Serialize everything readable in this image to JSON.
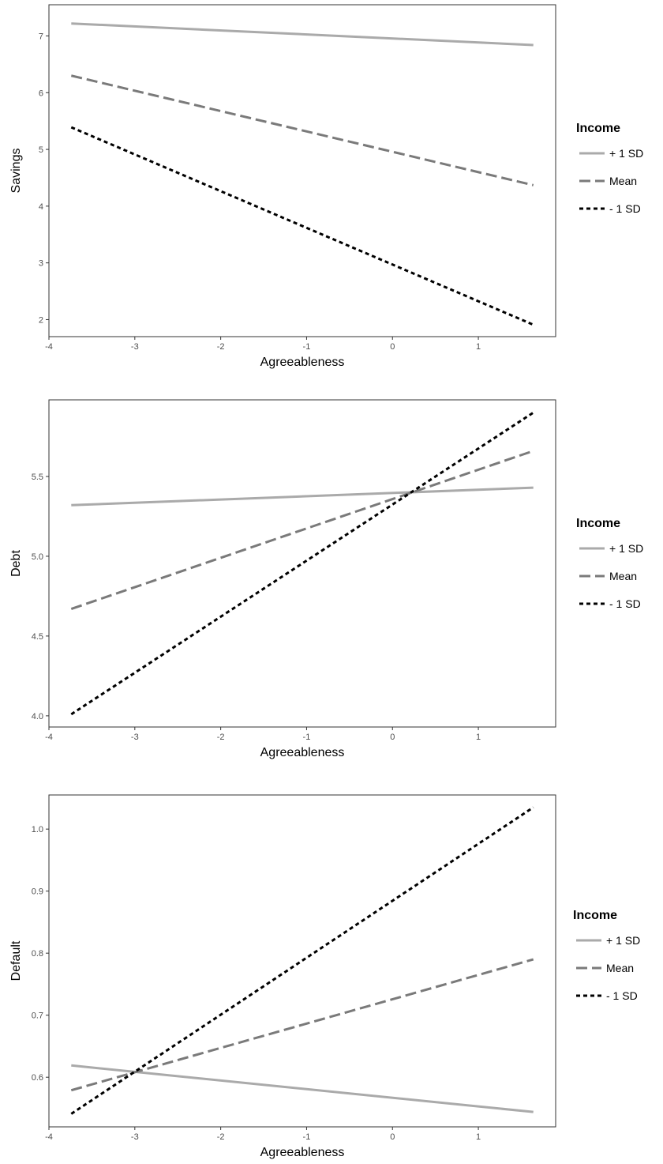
{
  "styles": {
    "plus_1_sd": {
      "color": "#aaaaaa",
      "dash": ""
    },
    "mean": {
      "color": "#7a7a7a",
      "dash": "14,6"
    },
    "minus_1_sd": {
      "color": "#000000",
      "dash": "5,4"
    }
  },
  "chart_data": [
    {
      "type": "line",
      "xlabel": "Agreeableness",
      "ylabel": "Savings",
      "xlim": [
        -4,
        1.9
      ],
      "ylim": [
        1.7,
        7.55
      ],
      "xticks": [
        -4,
        -3,
        -2,
        -1,
        0,
        1
      ],
      "yticks": [
        2,
        3,
        4,
        5,
        6,
        7
      ],
      "ytick_labels": [
        "2",
        "3",
        "4",
        "5",
        "6",
        "7"
      ],
      "legend": {
        "title": "Income",
        "placement": "right"
      },
      "series": [
        {
          "key": "plus_1_sd",
          "name": "+ 1 SD",
          "x": [
            -3.74,
            1.64
          ],
          "y": [
            7.22,
            6.84
          ]
        },
        {
          "key": "mean",
          "name": "Mean",
          "x": [
            -3.74,
            1.64
          ],
          "y": [
            6.3,
            4.37
          ]
        },
        {
          "key": "minus_1_sd",
          "name": "- 1 SD",
          "x": [
            -3.74,
            1.64
          ],
          "y": [
            5.39,
            1.91
          ]
        }
      ]
    },
    {
      "type": "line",
      "xlabel": "Agreeableness",
      "ylabel": "Debt",
      "xlim": [
        -4,
        1.9
      ],
      "ylim": [
        3.93,
        5.98
      ],
      "xticks": [
        -4,
        -3,
        -2,
        -1,
        0,
        1
      ],
      "yticks": [
        4.0,
        4.5,
        5.0,
        5.5
      ],
      "ytick_labels": [
        "4.0",
        "4.5",
        "5.0",
        "5.5"
      ],
      "legend": {
        "title": "Income",
        "placement": "right"
      },
      "series": [
        {
          "key": "plus_1_sd",
          "name": "+ 1 SD",
          "x": [
            -3.74,
            1.64
          ],
          "y": [
            5.32,
            5.43
          ]
        },
        {
          "key": "mean",
          "name": "Mean",
          "x": [
            -3.74,
            1.64
          ],
          "y": [
            4.67,
            5.66
          ]
        },
        {
          "key": "minus_1_sd",
          "name": "- 1 SD",
          "x": [
            -3.74,
            1.64
          ],
          "y": [
            4.01,
            5.9
          ]
        }
      ]
    },
    {
      "type": "line",
      "xlabel": "Agreeableness",
      "ylabel": "Default",
      "xlim": [
        -4,
        1.9
      ],
      "ylim": [
        0.52,
        1.055
      ],
      "xticks": [
        -4,
        -3,
        -2,
        -1,
        0,
        1
      ],
      "yticks": [
        0.6,
        0.7,
        0.8,
        0.9,
        1.0
      ],
      "ytick_labels": [
        "0.6",
        "0.7",
        "0.8",
        "0.9",
        "1.0"
      ],
      "legend": {
        "title": "Income",
        "placement": "right"
      },
      "series": [
        {
          "key": "plus_1_sd",
          "name": "+ 1 SD",
          "x": [
            -3.74,
            1.64
          ],
          "y": [
            0.619,
            0.544
          ]
        },
        {
          "key": "mean",
          "name": "Mean",
          "x": [
            -3.74,
            1.64
          ],
          "y": [
            0.579,
            0.79
          ]
        },
        {
          "key": "minus_1_sd",
          "name": "- 1 SD",
          "x": [
            -3.74,
            1.64
          ],
          "y": [
            0.541,
            1.035
          ]
        }
      ]
    }
  ]
}
